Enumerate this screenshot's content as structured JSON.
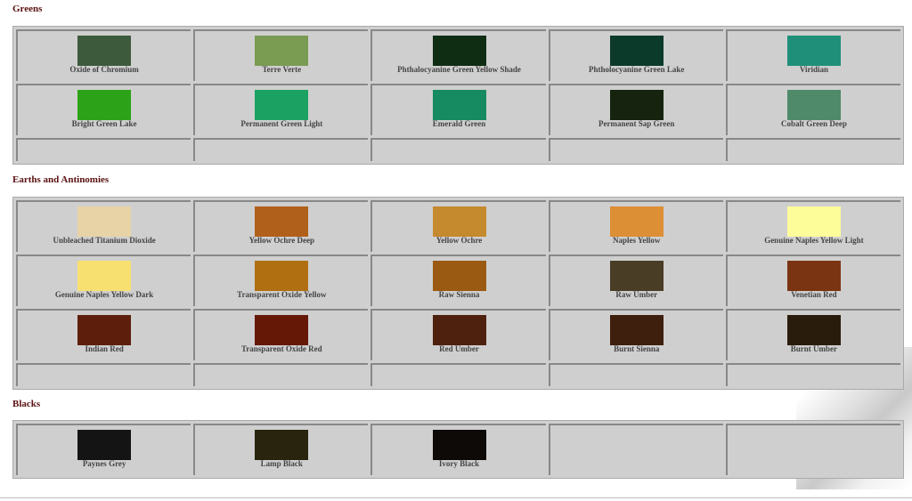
{
  "sections": [
    {
      "title": "Greens",
      "rows": [
        [
          {
            "name": "Oxide of Chromium",
            "color": "#3d5a3c"
          },
          {
            "name": "Terre Verte",
            "color": "#7a9b52"
          },
          {
            "name": "Phthalocyanine Green Yellow Shade",
            "color": "#0f2d12"
          },
          {
            "name": "Phtholocyanine Green Lake",
            "color": "#0c3a2a"
          },
          {
            "name": "Viridian",
            "color": "#1f8f7a"
          }
        ],
        [
          {
            "name": "Bright Green Lake",
            "color": "#2ca218"
          },
          {
            "name": "Permanent Green Light",
            "color": "#1ba263"
          },
          {
            "name": "Emerald Green",
            "color": "#168a60"
          },
          {
            "name": "Permanent Sap Green",
            "color": "#16240f"
          },
          {
            "name": "Cobalt Green Deep",
            "color": "#4f8a6a"
          }
        ],
        [
          null,
          null,
          null,
          null,
          null
        ]
      ]
    },
    {
      "title": "Earths and Antinomies",
      "rows": [
        [
          {
            "name": "Unbleached Titanium Dioxide",
            "color": "#e8d3a6"
          },
          {
            "name": "Yellow Ochre Deep",
            "color": "#b0601a"
          },
          {
            "name": "Yellow Ochre",
            "color": "#c58a2e"
          },
          {
            "name": "Naples Yellow",
            "color": "#dc8f34"
          },
          {
            "name": "Genuine Naples Yellow Light",
            "color": "#fdfd9a"
          }
        ],
        [
          {
            "name": "Genuine Naples Yellow Dark",
            "color": "#f8e070"
          },
          {
            "name": "Transparent Oxide Yellow",
            "color": "#b07012"
          },
          {
            "name": "Raw Sienna",
            "color": "#9a5a12"
          },
          {
            "name": "Raw Umber",
            "color": "#4a3d26"
          },
          {
            "name": "Venetian Red",
            "color": "#7a3412"
          }
        ],
        [
          {
            "name": "Indian Red",
            "color": "#5e1e0c"
          },
          {
            "name": "Transparent Oxide Red",
            "color": "#661806"
          },
          {
            "name": "Red Umber",
            "color": "#4e200e"
          },
          {
            "name": "Burnt Sienna",
            "color": "#3e1e0c"
          },
          {
            "name": "Burnt Umber",
            "color": "#2a1c0c"
          }
        ],
        [
          null,
          null,
          null,
          null,
          null
        ]
      ]
    },
    {
      "title": "Blacks",
      "rows": [
        [
          {
            "name": "Paynes Grey",
            "color": "#141414"
          },
          {
            "name": "Lamp Black",
            "color": "#28240e"
          },
          {
            "name": "Ivory Black",
            "color": "#0e0a08"
          },
          null,
          null
        ]
      ]
    }
  ]
}
